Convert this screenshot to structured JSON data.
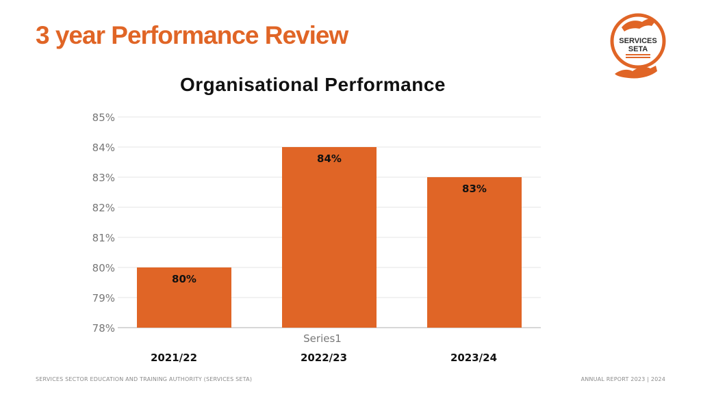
{
  "slide": {
    "title": "3 year Performance Review"
  },
  "logo": {
    "line1": "SERVICES",
    "line2": "SETA"
  },
  "footer": {
    "left": "SERVICES SECTOR EDUCATION AND TRAINING AUTHORITY (SERVICES SETA)",
    "right": "ANNUAL REPORT 2023 | 2024"
  },
  "colors": {
    "accent": "#e06526",
    "bar": "#e06526"
  },
  "chart_data": {
    "type": "bar",
    "title": "Organisational Performance",
    "categories": [
      "2021/22",
      "2022/23",
      "2023/24"
    ],
    "series": [
      {
        "name": "Series1",
        "values": [
          80,
          84,
          83
        ]
      }
    ],
    "data_labels": [
      "80%",
      "84%",
      "83%"
    ],
    "ylim": [
      78,
      85
    ],
    "yticks": [
      78,
      79,
      80,
      81,
      82,
      83,
      84,
      85
    ],
    "ytick_labels": [
      "78%",
      "79%",
      "80%",
      "81%",
      "82%",
      "83%",
      "84%",
      "85%"
    ],
    "axis_title": "Series1",
    "grid": true,
    "legend": "none"
  }
}
